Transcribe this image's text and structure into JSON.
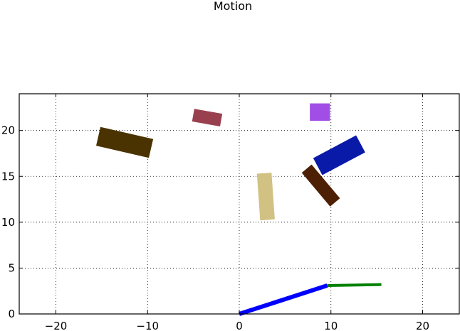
{
  "chart_data": {
    "type": "scatter",
    "title": "Motion",
    "xlabel": "",
    "ylabel": "",
    "xlim": [
      -24,
      24
    ],
    "ylim": [
      0,
      24
    ],
    "grid": true,
    "x_ticks": [
      -20,
      -10,
      0,
      10,
      20
    ],
    "y_ticks": [
      0,
      5,
      10,
      15,
      20
    ],
    "x_tick_labels": [
      "−20",
      "−10",
      "0",
      "10",
      "20"
    ],
    "y_tick_labels": [
      "0",
      "5",
      "10",
      "15",
      "20"
    ],
    "segments": [
      {
        "name": "",
        "color": "#0000ff",
        "points": [
          [
            0,
            0
          ],
          [
            9.6,
            3.1
          ]
        ]
      },
      {
        "name": "",
        "color": "#008000",
        "points": [
          [
            9.6,
            3.1
          ],
          [
            15.5,
            3.2
          ]
        ]
      }
    ],
    "rectangles": [
      {
        "cx": -12.5,
        "cy": 18.7,
        "width": 5.9,
        "height": 2.1,
        "angle": -13,
        "color": "#4a3300"
      },
      {
        "cx": -3.5,
        "cy": 21.4,
        "width": 3.1,
        "height": 1.4,
        "angle": -10,
        "color": "#99404f"
      },
      {
        "cx": 2.9,
        "cy": 12.8,
        "width": 1.6,
        "height": 5.1,
        "angle": 4,
        "color": "#d1c284"
      },
      {
        "cx": 8.8,
        "cy": 22.0,
        "width": 2.2,
        "height": 1.9,
        "angle": 0,
        "color": "#a04ee6"
      },
      {
        "cx": 10.9,
        "cy": 17.3,
        "width": 5.3,
        "height": 2.1,
        "angle": 28,
        "color": "#0a1aa8"
      },
      {
        "cx": 8.9,
        "cy": 14.0,
        "width": 1.4,
        "height": 4.8,
        "angle": 40,
        "color": "#4d1f04"
      }
    ]
  }
}
